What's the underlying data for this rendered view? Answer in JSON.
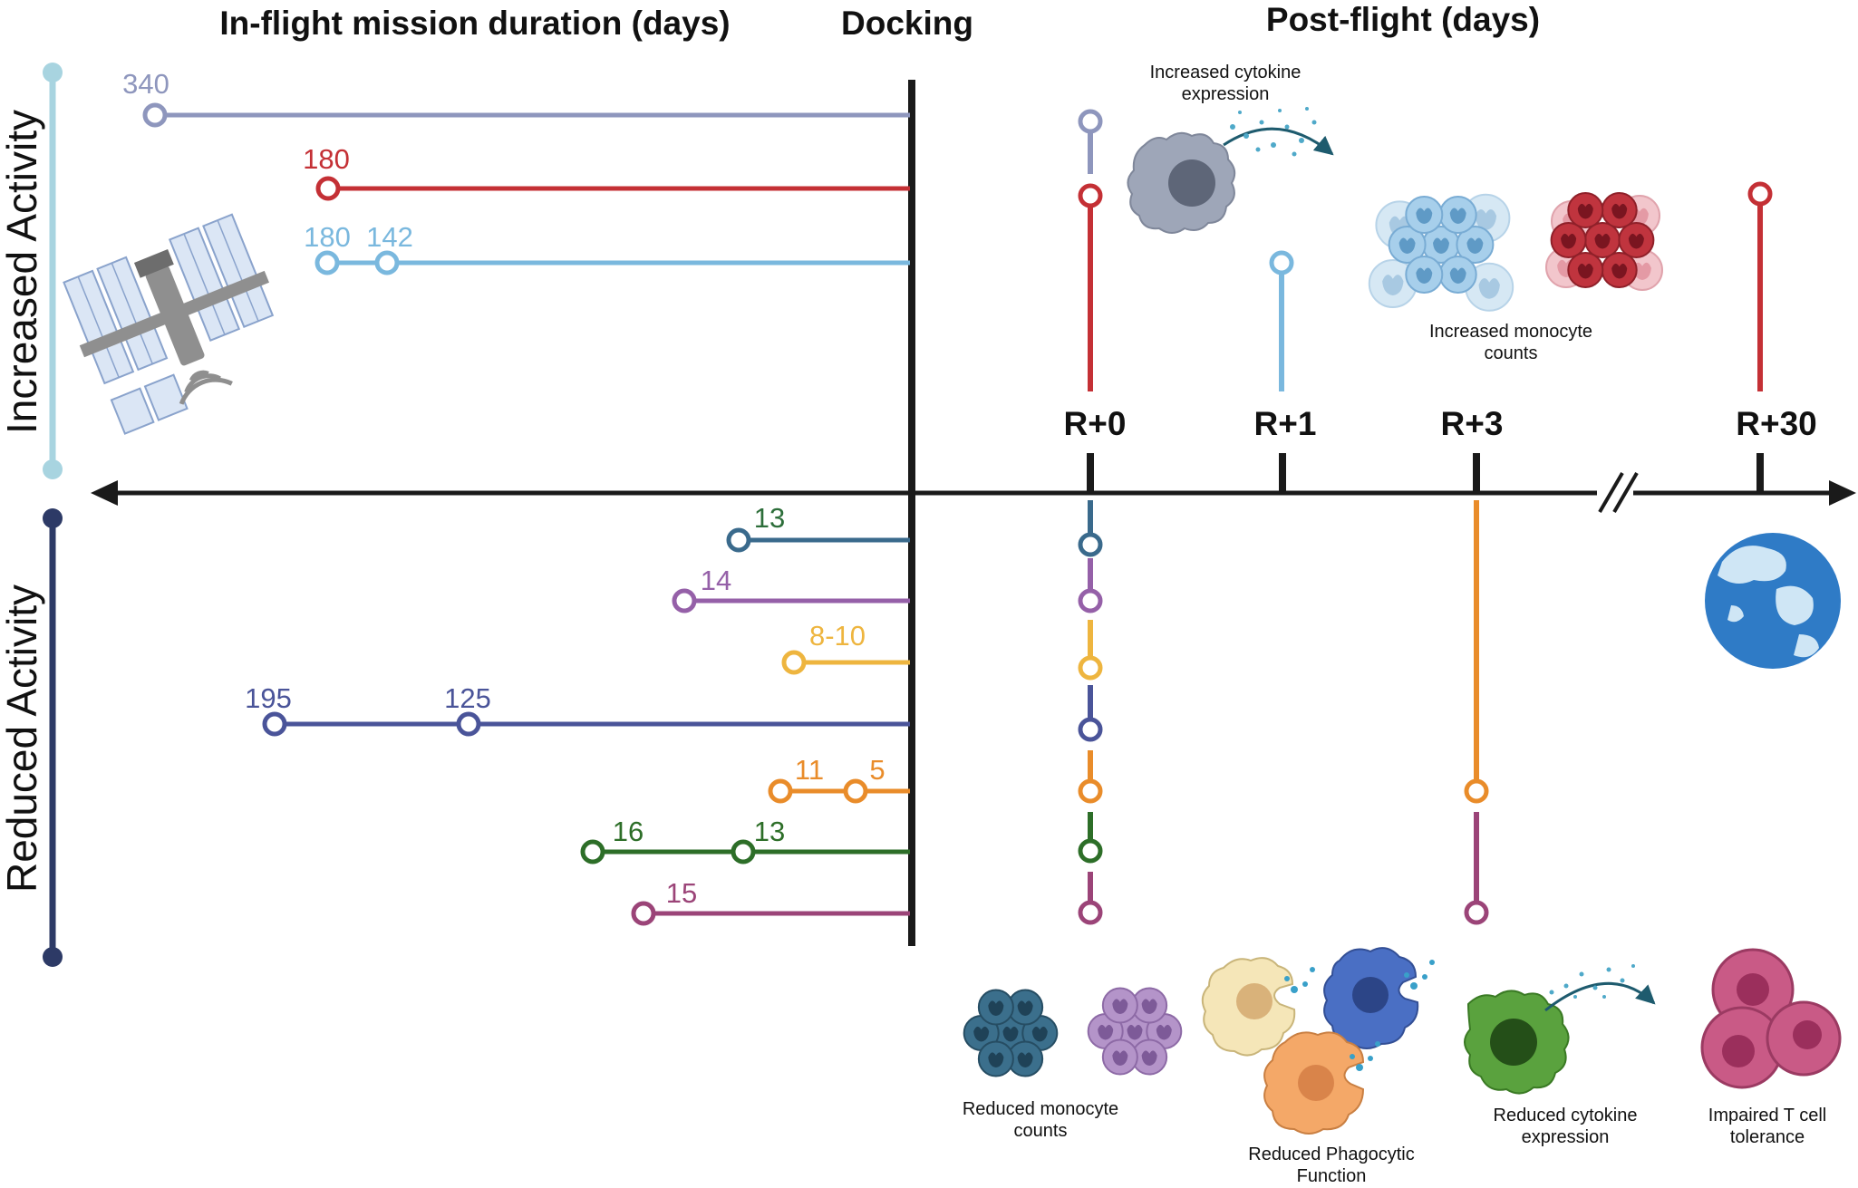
{
  "headers": {
    "inflight": "In-flight mission duration (days)",
    "docking": "Docking",
    "postflight": "Post-flight (days)"
  },
  "side_labels": {
    "increased": "Increased Activity",
    "reduced": "Reduced Activity"
  },
  "timepoints": [
    "R+0",
    "R+1",
    "R+3",
    "R+30"
  ],
  "colors": {
    "lavender_grey": "#8e96bd",
    "red": "#c43035",
    "sky_blue": "#7ab8de",
    "steel_blue": "#3a6a8c",
    "purple": "#9560a8",
    "yellow": "#eeb53f",
    "indigo": "#4a5499",
    "orange": "#e98c2a",
    "green": "#2d6e28",
    "magenta": "#9b4478",
    "axis": "#1a1a1a",
    "bar_light": "#a8d4e0",
    "bar_dark": "#2d3a66"
  },
  "increased": {
    "missions": [
      {
        "labels": [
          "340"
        ],
        "color": "#8e96bd"
      },
      {
        "labels": [
          "180"
        ],
        "color": "#c43035"
      },
      {
        "labels": [
          "180",
          "142"
        ],
        "color": "#7ab8de"
      }
    ]
  },
  "reduced": {
    "missions": [
      {
        "labels": [
          "13"
        ],
        "color": "#3a6a8c"
      },
      {
        "labels": [
          "14"
        ],
        "color": "#9560a8"
      },
      {
        "labels": [
          "8-10"
        ],
        "color": "#eeb53f"
      },
      {
        "labels": [
          "195",
          "125"
        ],
        "color": "#4a5499"
      },
      {
        "labels": [
          "11",
          "5"
        ],
        "color": "#e98c2a"
      },
      {
        "labels": [
          "16",
          "13"
        ],
        "color": "#2d6e28"
      },
      {
        "labels": [
          "15"
        ],
        "color": "#9b4478"
      }
    ]
  },
  "captions": {
    "cytokine_up": [
      "Increased cytokine",
      "expression"
    ],
    "monocyte_up": [
      "Increased monocyte",
      "counts"
    ],
    "monocyte_down": [
      "Reduced monocyte",
      "counts"
    ],
    "phagocytic": [
      "Reduced Phagocytic",
      "Function"
    ],
    "cytokine_down": [
      "Reduced cytokine",
      "expression"
    ],
    "tcell": [
      "Impaired T cell",
      "tolerance"
    ]
  },
  "icons": [
    "space-station-icon",
    "earth-globe-icon",
    "monocyte-cell-icon",
    "macrophage-icon",
    "t-cell-icon"
  ]
}
